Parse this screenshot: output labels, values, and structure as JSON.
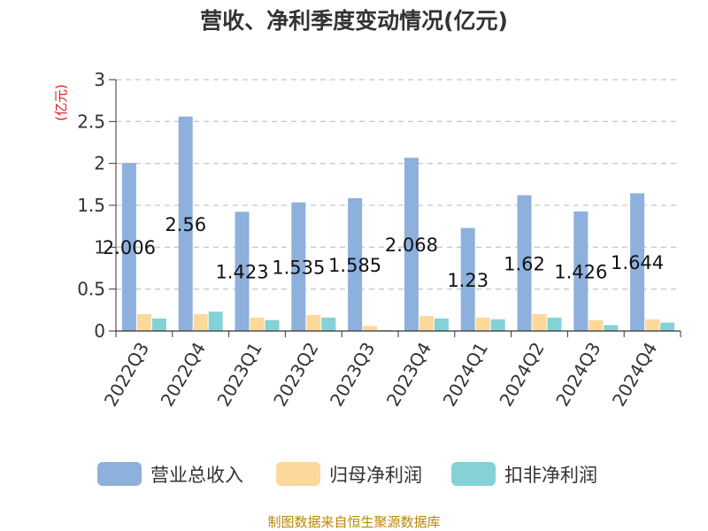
{
  "chart_data": {
    "type": "bar",
    "title": "营收、净利季度变动情况(亿元)",
    "ylabel": "(亿元)",
    "xlabel": "",
    "ylim": [
      0,
      3
    ],
    "yticks": [
      "0",
      "0.5",
      "1",
      "1.5",
      "2",
      "2.5",
      "3"
    ],
    "grid": true,
    "legend_position": "bottom",
    "categories": [
      "2022Q3",
      "2022Q4",
      "2023Q1",
      "2023Q2",
      "2023Q3",
      "2023Q4",
      "2024Q1",
      "2024Q2",
      "2024Q3",
      "2024Q4"
    ],
    "series": [
      {
        "name": "营业总收入",
        "color": "#8eb0dd",
        "values": [
          2.006,
          2.56,
          1.423,
          1.535,
          1.585,
          2.068,
          1.23,
          1.62,
          1.426,
          1.644
        ],
        "labels": [
          "2.006",
          "2.56",
          "1.423",
          "1.535",
          "1.585",
          "2.068",
          "1.23",
          "1.62",
          "1.426",
          "1.644"
        ]
      },
      {
        "name": "归母净利润",
        "color": "#fcd89a",
        "values": [
          0.2,
          0.2,
          0.16,
          0.19,
          0.06,
          0.18,
          0.16,
          0.2,
          0.13,
          0.14
        ]
      },
      {
        "name": "扣非净利润",
        "color": "#84d2d6",
        "values": [
          0.15,
          0.23,
          0.13,
          0.16,
          0.01,
          0.15,
          0.14,
          0.16,
          0.07,
          0.1
        ]
      }
    ],
    "source": "制图数据来自恒生聚源数据库"
  }
}
